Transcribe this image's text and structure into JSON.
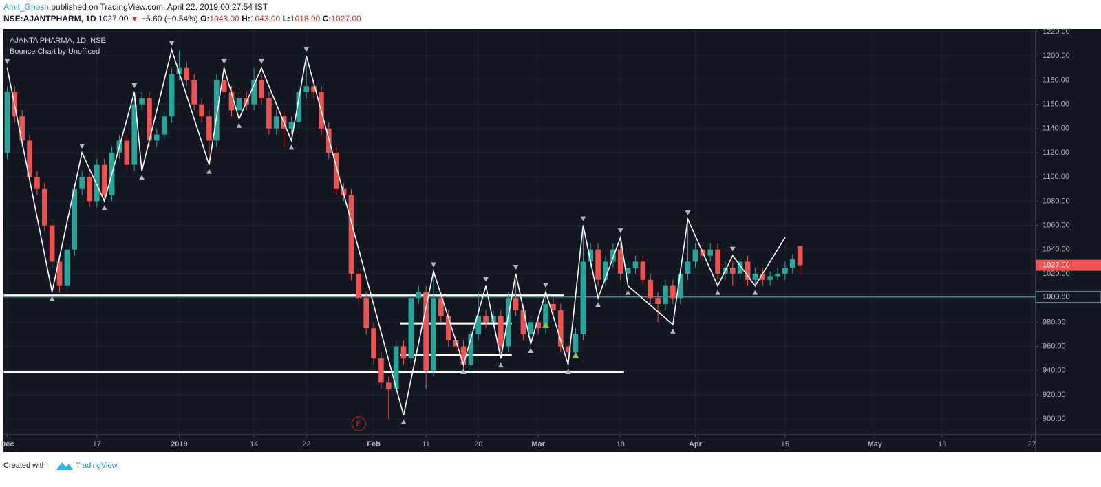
{
  "header": {
    "author": "Amit_Ghosh",
    "published": " published on TradingView.com, April 22, 2019 00:27:54 IST",
    "symbol": "NSE:AJANTPHARM, 1D",
    "last": "1027.00",
    "arrow": "▼",
    "change": "−5.60 (−0.54%)",
    "open_label": "O:",
    "open": "1043.00",
    "high_label": "H:",
    "high": "1043.00",
    "low_label": "L:",
    "low": "1018.90",
    "close_label": "C:",
    "close": "1027.00"
  },
  "footer": {
    "created": "Created with",
    "brand": "TradingView"
  },
  "chart_data": {
    "type": "candlestick",
    "title": "AJANTA PHARMA, 1D, NSE",
    "subtitle": "Bounce Chart by Unofficed",
    "up_color": "#26a69a",
    "down_color": "#ef5350",
    "grid": true,
    "categories": [
      "Dec",
      null,
      null,
      null,
      null,
      null,
      null,
      null,
      null,
      null,
      null,
      null,
      "17",
      null,
      null,
      null,
      null,
      null,
      null,
      null,
      null,
      null,
      null,
      "2019",
      null,
      null,
      null,
      null,
      null,
      null,
      null,
      null,
      null,
      "14",
      null,
      null,
      null,
      null,
      null,
      null,
      "22",
      null,
      null,
      null,
      null,
      null,
      null,
      null,
      null,
      "Feb",
      null,
      null,
      null,
      null,
      null,
      null,
      "11",
      null,
      null,
      null,
      null,
      null,
      null,
      "20",
      null,
      null,
      null,
      null,
      null,
      null,
      null,
      "Mar",
      null,
      null,
      null,
      null,
      null,
      null,
      null,
      null,
      null,
      null,
      "18",
      null,
      null,
      null,
      null,
      null,
      null,
      null,
      null,
      null,
      "Apr",
      null,
      null,
      null,
      null,
      null,
      null,
      null,
      null,
      null,
      null,
      null,
      "15",
      null,
      null,
      null,
      null,
      null,
      null,
      null,
      null,
      null,
      null,
      null,
      "May",
      null,
      null,
      null,
      null,
      null,
      null,
      null,
      null,
      "13",
      null,
      null,
      null,
      null,
      null,
      null,
      null,
      null,
      null,
      null,
      null,
      "27"
    ],
    "ohlc": [
      [
        1120,
        1175,
        1115,
        1170
      ],
      [
        1170,
        1175,
        1145,
        1150
      ],
      [
        1150,
        1155,
        1125,
        1130
      ],
      [
        1130,
        1135,
        1095,
        1100
      ],
      [
        1100,
        1105,
        1085,
        1090
      ],
      [
        1090,
        1095,
        1055,
        1060
      ],
      [
        1060,
        1065,
        1025,
        1030
      ],
      [
        1030,
        1035,
        1005,
        1010
      ],
      [
        1010,
        1045,
        1005,
        1040
      ],
      [
        1040,
        1095,
        1035,
        1090
      ],
      [
        1090,
        1105,
        1085,
        1100
      ],
      [
        1100,
        1105,
        1075,
        1080
      ],
      [
        1080,
        1115,
        1075,
        1110
      ],
      [
        1110,
        1115,
        1080,
        1085
      ],
      [
        1085,
        1125,
        1080,
        1120
      ],
      [
        1120,
        1135,
        1115,
        1130
      ],
      [
        1130,
        1135,
        1105,
        1110
      ],
      [
        1110,
        1165,
        1105,
        1160
      ],
      [
        1160,
        1170,
        1155,
        1165
      ],
      [
        1165,
        1170,
        1125,
        1130
      ],
      [
        1130,
        1140,
        1125,
        1135
      ],
      [
        1135,
        1155,
        1130,
        1150
      ],
      [
        1150,
        1190,
        1145,
        1185
      ],
      [
        1185,
        1205,
        1180,
        1190
      ],
      [
        1190,
        1195,
        1175,
        1180
      ],
      [
        1180,
        1185,
        1155,
        1160
      ],
      [
        1160,
        1165,
        1145,
        1150
      ],
      [
        1150,
        1155,
        1110,
        1130
      ],
      [
        1130,
        1185,
        1125,
        1180
      ],
      [
        1180,
        1190,
        1165,
        1170
      ],
      [
        1170,
        1175,
        1150,
        1155
      ],
      [
        1155,
        1170,
        1150,
        1165
      ],
      [
        1165,
        1170,
        1155,
        1160
      ],
      [
        1160,
        1190,
        1155,
        1180
      ],
      [
        1180,
        1185,
        1160,
        1165
      ],
      [
        1165,
        1170,
        1135,
        1140
      ],
      [
        1140,
        1155,
        1135,
        1150
      ],
      [
        1150,
        1155,
        1125,
        1140
      ],
      [
        1140,
        1150,
        1135,
        1145
      ],
      [
        1145,
        1175,
        1140,
        1170
      ],
      [
        1170,
        1200,
        1165,
        1175
      ],
      [
        1175,
        1180,
        1165,
        1170
      ],
      [
        1170,
        1175,
        1135,
        1140
      ],
      [
        1140,
        1145,
        1115,
        1120
      ],
      [
        1120,
        1125,
        1085,
        1090
      ],
      [
        1090,
        1095,
        1080,
        1085
      ],
      [
        1085,
        1090,
        1015,
        1020
      ],
      [
        1020,
        1025,
        995,
        1000
      ],
      [
        1000,
        1005,
        970,
        975
      ],
      [
        975,
        980,
        945,
        950
      ],
      [
        950,
        955,
        925,
        930
      ],
      [
        930,
        935,
        900,
        925
      ],
      [
        925,
        965,
        920,
        960
      ],
      [
        960,
        965,
        945,
        950
      ],
      [
        950,
        1005,
        945,
        1000
      ],
      [
        1000,
        1010,
        995,
        1005
      ],
      [
        1005,
        1010,
        925,
        940
      ],
      [
        940,
        1020,
        935,
        1000
      ],
      [
        1000,
        1005,
        980,
        985
      ],
      [
        985,
        990,
        960,
        965
      ],
      [
        965,
        970,
        955,
        960
      ],
      [
        960,
        965,
        940,
        945
      ],
      [
        945,
        975,
        940,
        970
      ],
      [
        970,
        1005,
        965,
        985
      ],
      [
        985,
        990,
        975,
        980
      ],
      [
        980,
        990,
        975,
        985
      ],
      [
        985,
        990,
        950,
        960
      ],
      [
        960,
        1005,
        955,
        1000
      ],
      [
        1000,
        1015,
        985,
        990
      ],
      [
        990,
        995,
        965,
        970
      ],
      [
        970,
        985,
        965,
        980
      ],
      [
        980,
        985,
        970,
        975
      ],
      [
        975,
        1000,
        970,
        995
      ],
      [
        995,
        1000,
        985,
        990
      ],
      [
        990,
        995,
        955,
        960
      ],
      [
        960,
        965,
        945,
        955
      ],
      [
        955,
        975,
        950,
        970
      ],
      [
        970,
        1060,
        965,
        1030
      ],
      [
        1030,
        1045,
        1025,
        1040
      ],
      [
        1040,
        1045,
        1010,
        1015
      ],
      [
        1015,
        1035,
        1010,
        1030
      ],
      [
        1030,
        1045,
        1025,
        1040
      ],
      [
        1040,
        1050,
        1015,
        1020
      ],
      [
        1020,
        1030,
        1015,
        1025
      ],
      [
        1025,
        1035,
        1020,
        1030
      ],
      [
        1030,
        1035,
        1010,
        1015
      ],
      [
        1015,
        1020,
        995,
        1000
      ],
      [
        1000,
        1005,
        980,
        995
      ],
      [
        995,
        1015,
        990,
        1010
      ],
      [
        1010,
        1015,
        995,
        1000
      ],
      [
        1000,
        1025,
        995,
        1020
      ],
      [
        1020,
        1065,
        1015,
        1030
      ],
      [
        1030,
        1045,
        1025,
        1040
      ],
      [
        1040,
        1045,
        1030,
        1035
      ],
      [
        1035,
        1045,
        1030,
        1040
      ],
      [
        1040,
        1045,
        1015,
        1020
      ],
      [
        1020,
        1030,
        1015,
        1025
      ],
      [
        1025,
        1030,
        1010,
        1020
      ],
      [
        1020,
        1035,
        1015,
        1030
      ],
      [
        1030,
        1035,
        1010,
        1015
      ],
      [
        1015,
        1025,
        1010,
        1020
      ],
      [
        1020,
        1025,
        1010,
        1015
      ],
      [
        1015,
        1022,
        1010,
        1018
      ],
      [
        1018,
        1025,
        1015,
        1020
      ],
      [
        1020,
        1030,
        1015,
        1025
      ],
      [
        1025,
        1036,
        1020,
        1032
      ],
      [
        1043,
        1043,
        1018.9,
        1027
      ]
    ],
    "zigzag": {
      "color": "#ffffff",
      "x": [
        0,
        6,
        10,
        13,
        17,
        18,
        22,
        27,
        29,
        31,
        34,
        38,
        40,
        53,
        57,
        61,
        64,
        66,
        68,
        70,
        72,
        75,
        77,
        79,
        82,
        83,
        89,
        91,
        95,
        97,
        100,
        104
      ],
      "y": [
        1190,
        1005,
        1120,
        1080,
        1170,
        1105,
        1205,
        1110,
        1190,
        1148,
        1190,
        1130,
        1200,
        903,
        1022,
        945,
        1010,
        950,
        1020,
        962,
        1005,
        945,
        1060,
        1000,
        1050,
        1010,
        978,
        1065,
        1010,
        1035,
        1010,
        1050
      ]
    },
    "buy_signals": {
      "color": "#8bc34a",
      "x": [
        72,
        76
      ],
      "y": [
        978,
        953
      ]
    },
    "levels": [
      {
        "value": 1002,
        "from": 0,
        "to": 74
      },
      {
        "value": 939,
        "from": 0,
        "to": 82
      },
      {
        "value": 979,
        "from": 53,
        "to": 67
      },
      {
        "value": 953,
        "from": 53,
        "to": 67
      }
    ],
    "price_line": {
      "value": 1000.8,
      "label": "1000.80",
      "color": "#5fb3bf"
    },
    "last_price": {
      "value": 1027,
      "label": "1027.00"
    },
    "earnings": {
      "x": 47,
      "label": "E"
    },
    "ylim": [
      887,
      1222.3
    ],
    "yticks": [
      {
        "value": 900,
        "label": "900.00"
      },
      {
        "value": 920,
        "label": "920.00"
      },
      {
        "value": 940,
        "label": "940.00"
      },
      {
        "value": 960,
        "label": "960.00"
      },
      {
        "value": 980,
        "label": "980.00"
      },
      {
        "value": 1000,
        "label": "1000.00"
      },
      {
        "value": 1020,
        "label": "1020.00"
      },
      {
        "value": 1040,
        "label": "1040.00"
      },
      {
        "value": 1060,
        "label": "1060.00"
      },
      {
        "value": 1080,
        "label": "1080.00"
      },
      {
        "value": 1100,
        "label": "1100.00"
      },
      {
        "value": 1120,
        "label": "1120.00"
      },
      {
        "value": 1140,
        "label": "1140.00"
      },
      {
        "value": 1160,
        "label": "1160.00"
      },
      {
        "value": 1180,
        "label": "1180.00"
      },
      {
        "value": 1200,
        "label": "1200.00"
      },
      {
        "value": 1220,
        "label": "1220.00"
      }
    ]
  }
}
